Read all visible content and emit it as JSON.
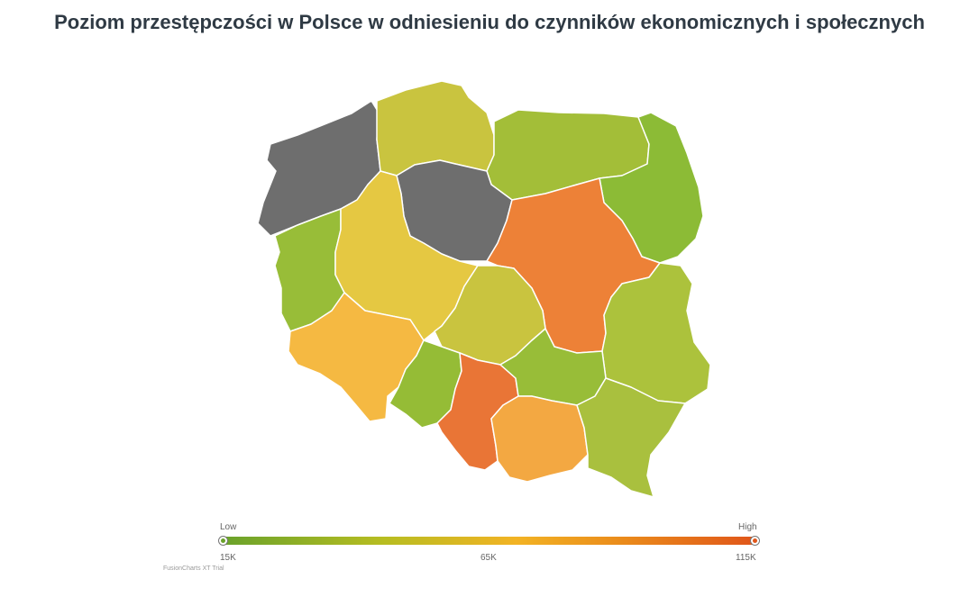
{
  "title": "Poziom przestępczości w Polsce w odniesieniu do czynników ekonomicznych i społecznych",
  "regions": [
    {
      "id": "zachodniopomorskie",
      "color": "#6e6e6e"
    },
    {
      "id": "pomorskie",
      "color": "#c9c43f"
    },
    {
      "id": "warminsko-mazurskie",
      "color": "#a3be38"
    },
    {
      "id": "podlaskie",
      "color": "#8cbb36"
    },
    {
      "id": "kujawsko-pomorskie",
      "color": "#6e6e6e"
    },
    {
      "id": "lubuskie",
      "color": "#98bd38"
    },
    {
      "id": "wielkopolskie",
      "color": "#e5c842"
    },
    {
      "id": "mazowieckie",
      "color": "#ed8137"
    },
    {
      "id": "lodzkie",
      "color": "#c9c43f"
    },
    {
      "id": "lubelskie",
      "color": "#acc23c"
    },
    {
      "id": "dolnoslaskie",
      "color": "#f5b942"
    },
    {
      "id": "opolskie",
      "color": "#95bc36"
    },
    {
      "id": "slaskie",
      "color": "#e97536"
    },
    {
      "id": "swietokrzyskie",
      "color": "#98bd38"
    },
    {
      "id": "malopolskie",
      "color": "#f3a842"
    },
    {
      "id": "podkarpackie",
      "color": "#a9c03e"
    }
  ],
  "legend": {
    "low_label": "Low",
    "high_label": "High",
    "min": "15K",
    "mid": "65K",
    "max": "115K",
    "low_color": "#6aa22b",
    "high_color": "#e0561a"
  },
  "watermark": "FusionCharts XT Trial"
}
